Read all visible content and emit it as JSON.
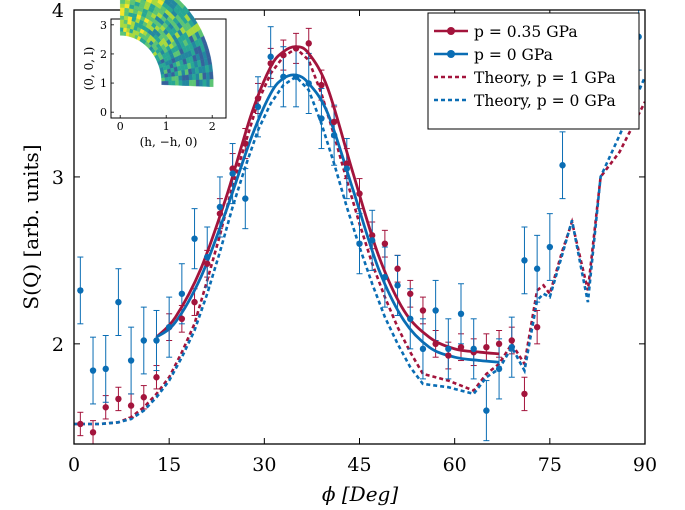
{
  "chart_data": {
    "type": "line",
    "title": "",
    "xlabel": "ϕ [Deg]",
    "ylabel": "S(Q) [arb. units]",
    "xlim": [
      0,
      90
    ],
    "ylim": [
      1.4,
      4
    ],
    "xticks": [
      0,
      15,
      30,
      45,
      60,
      75,
      90
    ],
    "yticks": [
      2,
      3,
      4
    ],
    "legend_position": "top-right",
    "colors": {
      "red": "#a3143c",
      "blue": "#0a6db4"
    },
    "legend": [
      {
        "label": "p = 0.35 GPa",
        "style": "line-marker",
        "color": "#a3143c"
      },
      {
        "label": "p = 0 GPa",
        "style": "line-marker",
        "color": "#0a6db4"
      },
      {
        "label": "Theory, p = 1 GPa",
        "style": "dashed",
        "color": "#a3143c"
      },
      {
        "label": "Theory, p = 0 GPa",
        "style": "dashed",
        "color": "#0a6db4"
      }
    ],
    "series": [
      {
        "name": "p = 0.35 GPa",
        "kind": "points",
        "color": "#a3143c",
        "points": [
          {
            "x": 1,
            "y": 1.52,
            "err": 0.07
          },
          {
            "x": 3,
            "y": 1.47,
            "err": 0.07
          },
          {
            "x": 5,
            "y": 1.62,
            "err": 0.07
          },
          {
            "x": 7,
            "y": 1.67,
            "err": 0.07
          },
          {
            "x": 9,
            "y": 1.63,
            "err": 0.07
          },
          {
            "x": 11,
            "y": 1.68,
            "err": 0.07
          },
          {
            "x": 13,
            "y": 1.8,
            "err": 0.07
          },
          {
            "x": 15,
            "y": 2.1,
            "err": 0.08
          },
          {
            "x": 17,
            "y": 2.15,
            "err": 0.08
          },
          {
            "x": 19,
            "y": 2.25,
            "err": 0.08
          },
          {
            "x": 21,
            "y": 2.48,
            "err": 0.08
          },
          {
            "x": 23,
            "y": 2.78,
            "err": 0.09
          },
          {
            "x": 25,
            "y": 3.05,
            "err": 0.09
          },
          {
            "x": 27,
            "y": 3.2,
            "err": 0.09
          },
          {
            "x": 29,
            "y": 3.47,
            "err": 0.09
          },
          {
            "x": 31,
            "y": 3.68,
            "err": 0.09
          },
          {
            "x": 33,
            "y": 3.73,
            "err": 0.09
          },
          {
            "x": 35,
            "y": 3.77,
            "err": 0.09
          },
          {
            "x": 37,
            "y": 3.8,
            "err": 0.09
          },
          {
            "x": 39,
            "y": 3.55,
            "err": 0.09
          },
          {
            "x": 41,
            "y": 3.33,
            "err": 0.09
          },
          {
            "x": 43,
            "y": 3.08,
            "err": 0.09
          },
          {
            "x": 45,
            "y": 2.9,
            "err": 0.09
          },
          {
            "x": 47,
            "y": 2.65,
            "err": 0.08
          },
          {
            "x": 49,
            "y": 2.6,
            "err": 0.08
          },
          {
            "x": 51,
            "y": 2.45,
            "err": 0.08
          },
          {
            "x": 53,
            "y": 2.3,
            "err": 0.08
          },
          {
            "x": 55,
            "y": 2.2,
            "err": 0.08
          },
          {
            "x": 57,
            "y": 2.0,
            "err": 0.08
          },
          {
            "x": 59,
            "y": 1.93,
            "err": 0.08
          },
          {
            "x": 61,
            "y": 1.98,
            "err": 0.08
          },
          {
            "x": 63,
            "y": 1.95,
            "err": 0.08
          },
          {
            "x": 65,
            "y": 1.98,
            "err": 0.08
          },
          {
            "x": 67,
            "y": 2.0,
            "err": 0.08
          },
          {
            "x": 69,
            "y": 2.02,
            "err": 0.08
          },
          {
            "x": 71,
            "y": 1.7,
            "err": 0.1
          },
          {
            "x": 73,
            "y": 2.1,
            "err": 0.1
          }
        ]
      },
      {
        "name": "p = 0 GPa",
        "kind": "points",
        "color": "#0a6db4",
        "points": [
          {
            "x": 1,
            "y": 2.32,
            "err": 0.2
          },
          {
            "x": 3,
            "y": 1.84,
            "err": 0.2
          },
          {
            "x": 5,
            "y": 1.85,
            "err": 0.2
          },
          {
            "x": 7,
            "y": 2.25,
            "err": 0.2
          },
          {
            "x": 9,
            "y": 1.9,
            "err": 0.2
          },
          {
            "x": 11,
            "y": 2.02,
            "err": 0.2
          },
          {
            "x": 13,
            "y": 2.02,
            "err": 0.18
          },
          {
            "x": 15,
            "y": 2.1,
            "err": 0.18
          },
          {
            "x": 17,
            "y": 2.3,
            "err": 0.18
          },
          {
            "x": 19,
            "y": 2.63,
            "err": 0.18
          },
          {
            "x": 21,
            "y": 2.52,
            "err": 0.18
          },
          {
            "x": 23,
            "y": 2.82,
            "err": 0.18
          },
          {
            "x": 25,
            "y": 3.02,
            "err": 0.18
          },
          {
            "x": 27,
            "y": 2.87,
            "err": 0.18
          },
          {
            "x": 29,
            "y": 3.42,
            "err": 0.18
          },
          {
            "x": 31,
            "y": 3.72,
            "err": 0.18
          },
          {
            "x": 33,
            "y": 3.6,
            "err": 0.18
          },
          {
            "x": 35,
            "y": 3.6,
            "err": 0.18
          },
          {
            "x": 37,
            "y": 3.56,
            "err": 0.18
          },
          {
            "x": 39,
            "y": 3.35,
            "err": 0.18
          },
          {
            "x": 41,
            "y": 3.25,
            "err": 0.18
          },
          {
            "x": 43,
            "y": 3.05,
            "err": 0.18
          },
          {
            "x": 45,
            "y": 2.6,
            "err": 0.18
          },
          {
            "x": 47,
            "y": 2.62,
            "err": 0.18
          },
          {
            "x": 49,
            "y": 2.4,
            "err": 0.18
          },
          {
            "x": 51,
            "y": 2.35,
            "err": 0.18
          },
          {
            "x": 53,
            "y": 2.15,
            "err": 0.18
          },
          {
            "x": 55,
            "y": 1.97,
            "err": 0.18
          },
          {
            "x": 57,
            "y": 2.2,
            "err": 0.18
          },
          {
            "x": 59,
            "y": 1.97,
            "err": 0.18
          },
          {
            "x": 61,
            "y": 2.18,
            "err": 0.18
          },
          {
            "x": 63,
            "y": 1.97,
            "err": 0.18
          },
          {
            "x": 65,
            "y": 1.6,
            "err": 0.18
          },
          {
            "x": 67,
            "y": 1.85,
            "err": 0.18
          },
          {
            "x": 69,
            "y": 1.98,
            "err": 0.18
          },
          {
            "x": 71,
            "y": 2.5,
            "err": 0.2
          },
          {
            "x": 73,
            "y": 2.45,
            "err": 0.2
          },
          {
            "x": 75,
            "y": 2.58,
            "err": 0.2
          },
          {
            "x": 77,
            "y": 3.07,
            "err": 0.2
          },
          {
            "x": 89,
            "y": 3.84,
            "err": 0.2
          }
        ]
      },
      {
        "name": "fit p = 0.35 GPa",
        "kind": "solid",
        "color": "#a3143c",
        "x": [
          13,
          16,
          20,
          24,
          28,
          31,
          33,
          35,
          37,
          40,
          44,
          48,
          52,
          56,
          60,
          64,
          67
        ],
        "y": [
          2.04,
          2.16,
          2.45,
          2.88,
          3.38,
          3.66,
          3.75,
          3.78,
          3.74,
          3.53,
          3.02,
          2.53,
          2.2,
          2.04,
          1.97,
          1.95,
          1.94
        ]
      },
      {
        "name": "fit p = 0 GPa",
        "kind": "solid",
        "color": "#0a6db4",
        "x": [
          13,
          16,
          20,
          24,
          28,
          31,
          33,
          35,
          37,
          40,
          44,
          48,
          52,
          56,
          60,
          64,
          67
        ],
        "y": [
          2.04,
          2.13,
          2.4,
          2.8,
          3.24,
          3.5,
          3.59,
          3.61,
          3.56,
          3.38,
          2.92,
          2.45,
          2.14,
          1.98,
          1.92,
          1.9,
          1.89
        ]
      },
      {
        "name": "Theory, p = 1 GPa",
        "kind": "dashed",
        "color": "#a3143c",
        "x": [
          0,
          4,
          7,
          9,
          11,
          13,
          15,
          17,
          19,
          21,
          23,
          25,
          27,
          29,
          31,
          33,
          35,
          37,
          39,
          41,
          43,
          45,
          47,
          49,
          51,
          53,
          55,
          57,
          59,
          61,
          63,
          65,
          67,
          69,
          71,
          73,
          74,
          75,
          77,
          78.5,
          80,
          81,
          83,
          86,
          90
        ],
        "y": [
          1.52,
          1.52,
          1.53,
          1.56,
          1.62,
          1.7,
          1.8,
          1.95,
          2.12,
          2.38,
          2.65,
          2.95,
          3.2,
          3.45,
          3.62,
          3.72,
          3.77,
          3.7,
          3.5,
          3.25,
          2.98,
          2.72,
          2.48,
          2.28,
          2.1,
          1.95,
          1.82,
          1.8,
          1.78,
          1.75,
          1.72,
          1.82,
          1.88,
          2.0,
          1.88,
          2.32,
          2.35,
          2.3,
          2.56,
          2.73,
          2.48,
          2.32,
          3.0,
          3.15,
          3.45
        ]
      },
      {
        "name": "Theory, p = 0 GPa",
        "kind": "dashed",
        "color": "#0a6db4",
        "x": [
          0,
          4,
          7,
          9,
          11,
          13,
          15,
          17,
          19,
          21,
          23,
          25,
          27,
          29,
          31,
          33,
          35,
          37,
          39,
          41,
          43,
          45,
          47,
          49,
          51,
          53,
          55,
          57,
          59,
          61,
          63,
          65,
          67,
          69,
          71,
          73,
          74,
          75,
          77,
          78.5,
          80,
          81,
          83,
          86,
          90
        ],
        "y": [
          1.52,
          1.52,
          1.53,
          1.55,
          1.6,
          1.68,
          1.78,
          1.92,
          2.08,
          2.3,
          2.55,
          2.82,
          3.06,
          3.28,
          3.44,
          3.55,
          3.6,
          3.52,
          3.32,
          3.08,
          2.82,
          2.58,
          2.36,
          2.16,
          2.0,
          1.86,
          1.76,
          1.75,
          1.74,
          1.72,
          1.7,
          1.8,
          1.85,
          1.98,
          1.84,
          2.26,
          2.3,
          2.28,
          2.54,
          2.74,
          2.44,
          2.25,
          3.0,
          3.25,
          3.6
        ]
      }
    ],
    "inset": {
      "xlabel": "(h, −h, 0)",
      "ylabel": "(0, 0, l)",
      "xlim": [
        -0.2,
        2.3
      ],
      "ylim": [
        -0.2,
        3.2
      ],
      "xticks": [
        0,
        1,
        2
      ],
      "yticks": [
        0,
        1,
        2,
        3
      ],
      "colormap": [
        "#f5e52a",
        "#a8d93e",
        "#5cc474",
        "#28a795",
        "#2388a0",
        "#35629c",
        "#3f3d90"
      ]
    }
  }
}
